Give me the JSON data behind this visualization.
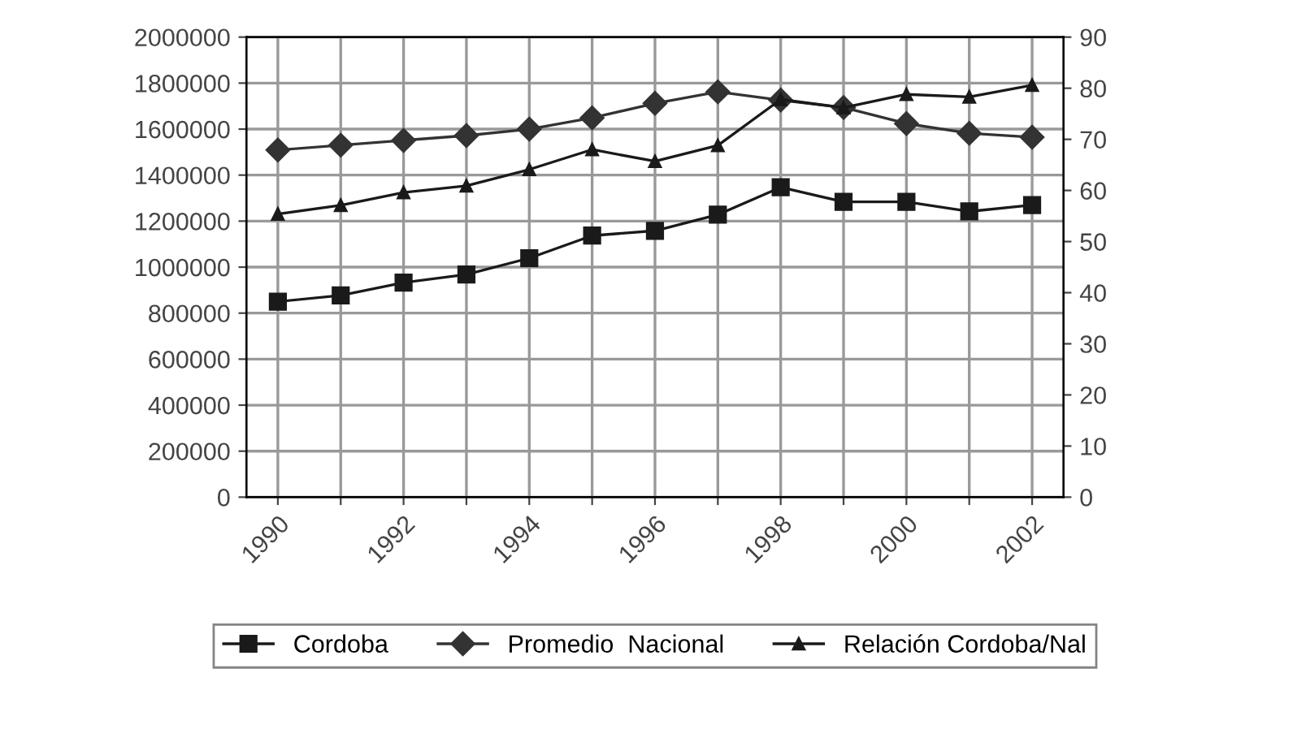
{
  "chart_data": {
    "type": "line",
    "categories": [
      "1990",
      null,
      "1992",
      null,
      "1994",
      null,
      "1996",
      null,
      "1998",
      null,
      "2000",
      null,
      "2002"
    ],
    "series": [
      {
        "name": "Cordoba",
        "color": "#1a1a1a",
        "marker": "square",
        "values": [
          850000,
          877000,
          933000,
          968000,
          1039000,
          1137000,
          1158000,
          1228000,
          1347000,
          1284000,
          1284000,
          1242000,
          1270000
        ]
      },
      {
        "name": "Promedio  Nacional",
        "color": "#333333",
        "marker": "diamond",
        "values": [
          1509000,
          1530000,
          1551000,
          1572000,
          1600000,
          1649000,
          1712000,
          1762000,
          1726000,
          1694000,
          1624000,
          1582000,
          1565000
        ]
      },
      {
        "name": "Relación Cordoba/Nal",
        "color": "#1a1a1a",
        "marker": "triangle",
        "axis": "y2",
        "values": [
          55.4,
          57.1,
          59.6,
          60.9,
          64.1,
          68.0,
          65.7,
          68.8,
          77.8,
          76.2,
          78.8,
          78.3,
          80.6
        ]
      }
    ],
    "ylim": [
      0,
      2000000
    ],
    "yticks": [
      0,
      200000,
      400000,
      600000,
      800000,
      1000000,
      1200000,
      1400000,
      1600000,
      1800000,
      2000000
    ],
    "y2lim": [
      0,
      90
    ],
    "y2ticks": [
      0,
      10,
      20,
      30,
      40,
      50,
      60,
      70,
      80,
      90
    ],
    "grid": true,
    "legend": "bottom",
    "line_style": "solid"
  }
}
